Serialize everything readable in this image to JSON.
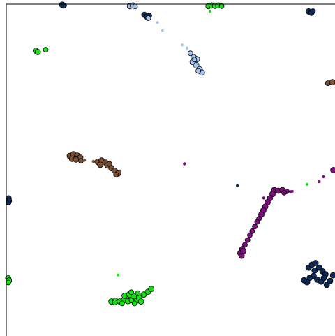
{
  "chart_data": {
    "type": "scatter",
    "title": "",
    "xlabel": "",
    "ylabel": "",
    "xlim": [
      0,
      100
    ],
    "ylim": [
      0,
      100
    ],
    "grid": false,
    "legend": "none",
    "axes_visible": [
      "left",
      "top"
    ],
    "series": [
      {
        "color": "#0d2a55",
        "points": [
          {
            "x": 17,
            "y": 99.8,
            "s": 4
          },
          {
            "x": 17.5,
            "y": 99.6,
            "s": 4
          },
          {
            "x": 42,
            "y": 96.8,
            "s": 4
          },
          {
            "x": 42.8,
            "y": 96.2,
            "s": 4
          },
          {
            "x": 43.5,
            "y": 96.6,
            "s": 3.5
          },
          {
            "x": 92,
            "y": 97.8,
            "s": 4
          },
          {
            "x": 92.8,
            "y": 97.4,
            "s": 4
          },
          {
            "x": 93.3,
            "y": 97.9,
            "s": 3.5
          },
          {
            "x": 0.7,
            "y": 41.5,
            "s": 4
          },
          {
            "x": 0.8,
            "y": 40.8,
            "s": 4
          },
          {
            "x": 0.7,
            "y": 40.2,
            "s": 3.5
          },
          {
            "x": 70.3,
            "y": 45.3,
            "s": 2
          },
          {
            "x": 92.0,
            "y": 20.6,
            "s": 4
          },
          {
            "x": 93.0,
            "y": 21.5,
            "s": 4
          },
          {
            "x": 94.1,
            "y": 22.0,
            "s": 4
          },
          {
            "x": 95.2,
            "y": 20.6,
            "s": 4
          },
          {
            "x": 96.2,
            "y": 19.5,
            "s": 4
          },
          {
            "x": 97.1,
            "y": 18.6,
            "s": 4
          },
          {
            "x": 93.5,
            "y": 18.1,
            "s": 4
          },
          {
            "x": 92.3,
            "y": 17.5,
            "s": 4
          },
          {
            "x": 94.6,
            "y": 17.0,
            "s": 4
          },
          {
            "x": 95.8,
            "y": 16.4,
            "s": 4
          },
          {
            "x": 97.5,
            "y": 15.4,
            "s": 4
          },
          {
            "x": 98.5,
            "y": 16.6,
            "s": 4
          },
          {
            "x": 99.4,
            "y": 18.3,
            "s": 4
          },
          {
            "x": 93.8,
            "y": 19.7,
            "s": 4
          },
          {
            "x": 96.6,
            "y": 17.5,
            "s": 4
          },
          {
            "x": 91.5,
            "y": 16.2,
            "s": 4
          },
          {
            "x": 90.6,
            "y": 16.8,
            "s": 4
          }
        ]
      },
      {
        "color": "#a3c4ef",
        "points": [
          {
            "x": 37.6,
            "y": 99.4,
            "s": 4
          },
          {
            "x": 38.5,
            "y": 99.6,
            "s": 4
          },
          {
            "x": 39.2,
            "y": 99.3,
            "s": 3.5
          },
          {
            "x": 43.2,
            "y": 95.8,
            "s": 3.5
          },
          {
            "x": 46.0,
            "y": 94.5,
            "s": 2
          },
          {
            "x": 47.5,
            "y": 92.0,
            "s": 2
          },
          {
            "x": 53.5,
            "y": 87.7,
            "s": 2
          },
          {
            "x": 55.0,
            "y": 86.8,
            "s": 2.2
          },
          {
            "x": 56.0,
            "y": 85.2,
            "s": 3.5
          },
          {
            "x": 57.0,
            "y": 84.0,
            "s": 4
          },
          {
            "x": 58.0,
            "y": 83.4,
            "s": 4
          },
          {
            "x": 56.7,
            "y": 82.6,
            "s": 4
          },
          {
            "x": 57.8,
            "y": 81.6,
            "s": 4
          },
          {
            "x": 58.8,
            "y": 80.4,
            "s": 4
          },
          {
            "x": 59.5,
            "y": 79.4,
            "s": 4
          },
          {
            "x": 58.4,
            "y": 79.9,
            "s": 3.5
          },
          {
            "x": 57.2,
            "y": 83.3,
            "s": 3.5
          }
        ]
      },
      {
        "color": "#1adf1a",
        "points": [
          {
            "x": 61.5,
            "y": 99.4,
            "s": 4
          },
          {
            "x": 62.5,
            "y": 99.6,
            "s": 4
          },
          {
            "x": 63.5,
            "y": 99.5,
            "s": 4
          },
          {
            "x": 64.5,
            "y": 99.6,
            "s": 4
          },
          {
            "x": 65.5,
            "y": 99.4,
            "s": 3.5
          },
          {
            "x": 62.0,
            "y": 97.8,
            "s": 2
          },
          {
            "x": 9.0,
            "y": 86.0,
            "s": 4
          },
          {
            "x": 9.6,
            "y": 85.6,
            "s": 4
          },
          {
            "x": 12.0,
            "y": 86.3,
            "s": 3.5
          },
          {
            "x": 0.6,
            "y": 17.4,
            "s": 4
          },
          {
            "x": 0.8,
            "y": 16.7,
            "s": 4
          },
          {
            "x": 0.6,
            "y": 16.1,
            "s": 3.5
          },
          {
            "x": 34.0,
            "y": 18.4,
            "s": 2
          },
          {
            "x": 91.5,
            "y": 45.7,
            "s": 2
          },
          {
            "x": 32.0,
            "y": 10.4,
            "s": 4
          },
          {
            "x": 33.2,
            "y": 10.6,
            "s": 4
          },
          {
            "x": 34.5,
            "y": 10.4,
            "s": 4
          },
          {
            "x": 35.8,
            "y": 10.8,
            "s": 4
          },
          {
            "x": 37.0,
            "y": 10.5,
            "s": 4
          },
          {
            "x": 38.2,
            "y": 10.8,
            "s": 4
          },
          {
            "x": 39.4,
            "y": 10.5,
            "s": 4
          },
          {
            "x": 36.0,
            "y": 12.1,
            "s": 4
          },
          {
            "x": 37.4,
            "y": 12.5,
            "s": 4
          },
          {
            "x": 38.8,
            "y": 12.0,
            "s": 4
          },
          {
            "x": 40.4,
            "y": 11.6,
            "s": 4
          },
          {
            "x": 41.8,
            "y": 12.5,
            "s": 4
          },
          {
            "x": 43.1,
            "y": 13.3,
            "s": 4
          },
          {
            "x": 44.1,
            "y": 14.2,
            "s": 4
          },
          {
            "x": 41.0,
            "y": 10.4,
            "s": 4
          },
          {
            "x": 39.0,
            "y": 9.8,
            "s": 3.5
          },
          {
            "x": 35.2,
            "y": 9.8,
            "s": 3.5
          },
          {
            "x": 33.0,
            "y": 10.1,
            "s": 3.5
          },
          {
            "x": 38.0,
            "y": 13.2,
            "s": 3.5
          },
          {
            "x": 40.0,
            "y": 12.9,
            "s": 3.5
          }
        ]
      },
      {
        "color": "#7a5238",
        "points": [
          {
            "x": 19.3,
            "y": 54.3,
            "s": 4
          },
          {
            "x": 20.4,
            "y": 54.8,
            "s": 4
          },
          {
            "x": 21.6,
            "y": 54.4,
            "s": 4
          },
          {
            "x": 22.5,
            "y": 53.8,
            "s": 4
          },
          {
            "x": 20.0,
            "y": 53.4,
            "s": 4
          },
          {
            "x": 21.2,
            "y": 53.2,
            "s": 4
          },
          {
            "x": 22.7,
            "y": 52.8,
            "s": 3.5
          },
          {
            "x": 23.8,
            "y": 53.0,
            "s": 2.2
          },
          {
            "x": 26.5,
            "y": 52.6,
            "s": 2.2
          },
          {
            "x": 27.8,
            "y": 52.5,
            "s": 4
          },
          {
            "x": 29.0,
            "y": 52.9,
            "s": 4
          },
          {
            "x": 30.2,
            "y": 52.3,
            "s": 4
          },
          {
            "x": 28.6,
            "y": 51.6,
            "s": 4
          },
          {
            "x": 30.8,
            "y": 51.4,
            "s": 4
          },
          {
            "x": 32.0,
            "y": 50.6,
            "s": 4
          },
          {
            "x": 33.0,
            "y": 49.8,
            "s": 4
          },
          {
            "x": 34.0,
            "y": 49.0,
            "s": 4
          },
          {
            "x": 31.4,
            "y": 51.9,
            "s": 3.5
          },
          {
            "x": 33.4,
            "y": 48.6,
            "s": 3.5
          },
          {
            "x": 34.6,
            "y": 49.6,
            "s": 2
          },
          {
            "x": 97.8,
            "y": 76.2,
            "s": 3.5
          },
          {
            "x": 99.2,
            "y": 76.5,
            "s": 4
          }
        ]
      },
      {
        "color": "#7f0e7f",
        "points": [
          {
            "x": 54.2,
            "y": 51.9,
            "s": 2.2
          },
          {
            "x": 78.3,
            "y": 41.6,
            "s": 2.2
          },
          {
            "x": 86.5,
            "y": 43.5,
            "s": 2.2
          },
          {
            "x": 95.2,
            "y": 46.5,
            "s": 2.2
          },
          {
            "x": 96.5,
            "y": 48.0,
            "s": 2.2
          },
          {
            "x": 99.5,
            "y": 50.0,
            "s": 4
          },
          {
            "x": 81.5,
            "y": 44.0,
            "s": 4
          },
          {
            "x": 82.7,
            "y": 43.8,
            "s": 4
          },
          {
            "x": 84.0,
            "y": 44.0,
            "s": 4
          },
          {
            "x": 85.3,
            "y": 43.6,
            "s": 3.5
          },
          {
            "x": 81.0,
            "y": 42.8,
            "s": 4
          },
          {
            "x": 80.2,
            "y": 41.5,
            "s": 4
          },
          {
            "x": 79.5,
            "y": 40.3,
            "s": 4
          },
          {
            "x": 78.8,
            "y": 39.0,
            "s": 4
          },
          {
            "x": 78.2,
            "y": 37.8,
            "s": 4
          },
          {
            "x": 77.6,
            "y": 36.6,
            "s": 4
          },
          {
            "x": 76.9,
            "y": 35.4,
            "s": 3.5
          },
          {
            "x": 76.3,
            "y": 34.4,
            "s": 3.5
          },
          {
            "x": 75.6,
            "y": 33.0,
            "s": 3.5
          },
          {
            "x": 74.8,
            "y": 31.6,
            "s": 3.5
          },
          {
            "x": 74.1,
            "y": 30.4,
            "s": 3.5
          },
          {
            "x": 73.4,
            "y": 28.9,
            "s": 3.5
          },
          {
            "x": 72.6,
            "y": 27.5,
            "s": 3.5
          },
          {
            "x": 71.8,
            "y": 26.2,
            "s": 4
          },
          {
            "x": 71.2,
            "y": 25.0,
            "s": 4
          },
          {
            "x": 72.1,
            "y": 25.6,
            "s": 4
          },
          {
            "x": 71.6,
            "y": 24.2,
            "s": 4
          },
          {
            "x": 84.5,
            "y": 43.2,
            "s": 3.5
          },
          {
            "x": 87.0,
            "y": 43.6,
            "s": 2
          }
        ]
      }
    ]
  }
}
